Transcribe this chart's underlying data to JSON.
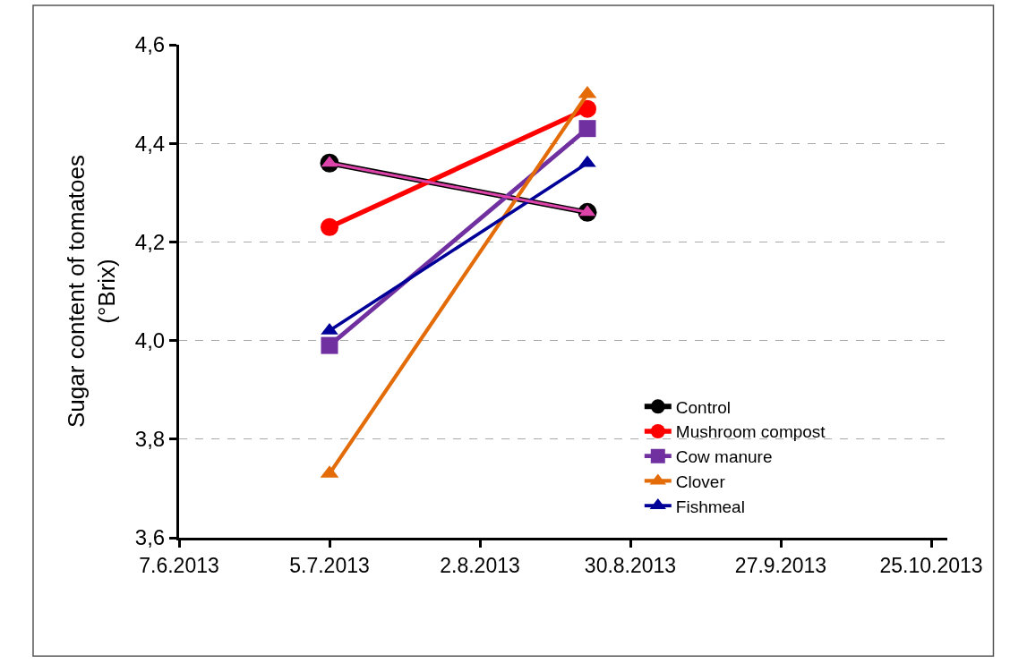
{
  "chart_data": {
    "type": "line",
    "ylabel": "Sugar content of tomatoes\n(°Brix)",
    "x": [
      "2013-07-05",
      "2013-08-22"
    ],
    "series": [
      {
        "name": "Control",
        "color": "#000000",
        "marker": "circle",
        "values": [
          4.36,
          4.26
        ]
      },
      {
        "name": "Mushroom compost",
        "color": "#ff0000",
        "marker": "circle",
        "values": [
          4.23,
          4.47
        ]
      },
      {
        "name": "Cow manure",
        "color": "#7030a0",
        "marker": "square",
        "values": [
          3.99,
          4.43
        ]
      },
      {
        "name": "Clover",
        "color": "#e36c09",
        "marker": "triangle",
        "values": [
          3.73,
          4.5
        ]
      },
      {
        "name": "Fishmeal",
        "color": "#000099",
        "marker": "triangle",
        "values": [
          4.02,
          4.36
        ]
      },
      {
        "color": "#dd44aa",
        "marker": "triangle",
        "values": [
          4.36,
          4.26
        ]
      }
    ],
    "xlim": [
      "2013-06-07",
      "2013-10-28"
    ],
    "xticks": [
      {
        "value": "2013-06-07",
        "label": "7.6.2013"
      },
      {
        "value": "2013-07-05",
        "label": "5.7.2013"
      },
      {
        "value": "2013-08-02",
        "label": "2.8.2013"
      },
      {
        "value": "2013-08-30",
        "label": "30.8.2013"
      },
      {
        "value": "2013-09-27",
        "label": "27.9.2013"
      },
      {
        "value": "2013-10-25",
        "label": "25.10.2013"
      }
    ],
    "ylim": [
      3.6,
      4.6
    ],
    "yticks": [
      {
        "value": 3.6,
        "label": "3,6"
      },
      {
        "value": 3.8,
        "label": "3,8"
      },
      {
        "value": 4.0,
        "label": "4,0"
      },
      {
        "value": 4.2,
        "label": "4,2"
      },
      {
        "value": 4.4,
        "label": "4,4"
      },
      {
        "value": 4.6,
        "label": "4,6"
      }
    ],
    "grid": "y",
    "legend": "bottom right",
    "line_style": "solid"
  }
}
